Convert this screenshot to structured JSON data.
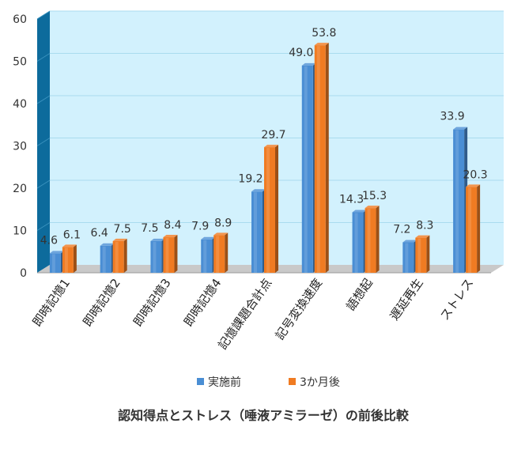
{
  "chart_data": {
    "type": "bar",
    "title": "認知得点とストレス（唾液アミラーゼ）の前後比較",
    "categories": [
      "即時記憶1",
      "即時記憶2",
      "即時記憶3",
      "即時記憶4",
      "記憶課題合計点",
      "記号変換速度",
      "語想起",
      "遅延再生",
      "ストレス"
    ],
    "series": [
      {
        "name": "実施前",
        "values": [
          4.6,
          6.4,
          7.5,
          7.9,
          19.2,
          49.0,
          14.3,
          7.2,
          33.9
        ],
        "labels": [
          "4.6",
          "6.4",
          "7.5",
          "7.9",
          "19.2",
          "49.0",
          "14.3",
          "7.2",
          "33.9"
        ]
      },
      {
        "name": "3か月後",
        "values": [
          6.1,
          7.5,
          8.4,
          8.9,
          29.7,
          53.8,
          15.3,
          8.3,
          20.3
        ],
        "labels": [
          "6.1",
          "7.5",
          "8.4",
          "8.9",
          "29.7",
          "53.8",
          "15.3",
          "8.3",
          "20.3"
        ]
      }
    ],
    "yticks": [
      "0",
      "10",
      "20",
      "30",
      "40",
      "50",
      "60"
    ],
    "ylim": [
      0,
      60
    ],
    "grid": true,
    "legend_position": "bottom",
    "style": "3d",
    "colors": {
      "series": [
        "#4a8ed4",
        "#f07b22"
      ],
      "wall": "#d2f1fd",
      "side_wall": "#0d6b9c",
      "floor": "#c9c9c9",
      "grid": "#a9dcef"
    }
  }
}
